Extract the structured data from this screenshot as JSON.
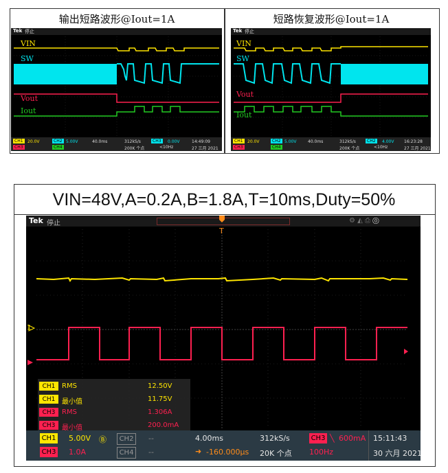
{
  "top_left": {
    "title": "输出短路波形@Iout=1A",
    "brand": "Tek",
    "state": "停止",
    "labels": {
      "vin": "VIN",
      "sw": "SW",
      "vout": "Vout",
      "iout": "Iout"
    },
    "bottom": {
      "ch1": "CH1",
      "ch1_scale": "20.0V",
      "ch2": "CH2",
      "ch2_scale": "5.00V",
      "ch3": "CH3",
      "ch4": "CH4",
      "timebase": "40.0ms",
      "sample_rate": "312kS/s",
      "points": "200K 个点",
      "trig_ch": "CH3",
      "trig_level": "0.00V",
      "freq": "<10Hz",
      "time": "14:49:09",
      "date": "27 三月 2021"
    }
  },
  "top_right": {
    "title": "短路恢复波形@Iout=1A",
    "brand": "Tek",
    "state": "停止",
    "labels": {
      "vin": "VIN",
      "sw": "SW",
      "vout": "Vout",
      "iout": "Iout"
    },
    "bottom": {
      "ch1": "CH1",
      "ch1_scale": "20.0V",
      "ch2": "CH2",
      "ch2_scale": "5.00V",
      "ch3": "CH3",
      "ch4": "CH4",
      "timebase": "40.0ms",
      "sample_rate": "312kS/s",
      "points": "200K 个点",
      "trig_ch": "CH2",
      "trig_level": "4.00V",
      "freq": "<10Hz",
      "time": "16:23:28",
      "date": "27 三月 2021"
    }
  },
  "bottom_panel": {
    "title": "VIN=48V,A=0.2A,B=1.8A,T=10ms,Duty=50%",
    "brand": "Tek",
    "state": "停止",
    "ch1_marker": "1",
    "measurements": [
      {
        "ch": "CH1",
        "name": "RMS",
        "value": "12.50V"
      },
      {
        "ch": "CH1",
        "name": "最小值",
        "value": "11.75V"
      },
      {
        "ch": "CH3",
        "name": "RMS",
        "value": "1.306A"
      },
      {
        "ch": "CH3",
        "name": "最小值",
        "value": "200.0mA"
      }
    ],
    "bottom": {
      "ch1": "CH1",
      "ch1_scale": "5.00V",
      "ch2": "CH2",
      "ch2_val": "--",
      "ch3": "CH3",
      "ch3_scale": "1.0A",
      "ch4": "CH4",
      "ch4_val": "--",
      "timebase": "4.00ms",
      "delay": "-160.000µs",
      "sample_rate": "312kS/s",
      "points": "20K 个点",
      "trig_ch": "CH3",
      "trig_level": "600mA",
      "freq": "100Hz",
      "time": "15:11:43",
      "date": "30 六月 2021"
    }
  },
  "colors": {
    "ch1": "#ffe600",
    "ch2": "#00e5ee",
    "ch3": "#ff2050",
    "ch4": "#22cc22"
  }
}
